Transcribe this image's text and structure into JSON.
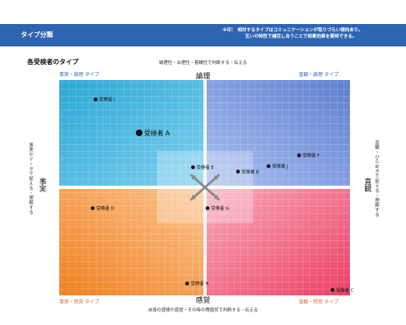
{
  "header": {
    "title": "タイプ分類",
    "note_line1": "※印： 相対するタイプはコミュニケーションが取りづらい傾向あり。",
    "note_line2": "互いの特性で補完し合うことで相乗効果を期待できる。"
  },
  "section_title": "各受検者のタイプ",
  "colors": {
    "banner": "#2f64b3",
    "top_left": "#2fa8d3",
    "top_right": "#5f82cf",
    "bottom_left": "#f08a2b",
    "bottom_right": "#ee5a77",
    "label_top": "#3a68b8",
    "label_bottom": "#e46b3a"
  },
  "chart_data": {
    "type": "scatter",
    "axes": {
      "top": "論理",
      "bottom": "感覚",
      "left": "事実",
      "right": "直観",
      "top_desc": "論理性・合理性・客観性で判断する・伝える",
      "bottom_desc": "自身の感情や感覚・その時の雰囲気で判断する・伝える",
      "left_desc": "事実やデータで捉える・理解する",
      "right_desc": "直観・ひらめきで捉える・理解する"
    },
    "quadrants": {
      "top_left": "事実・論理 タイプ",
      "top_right": "直観・論理 タイプ",
      "bottom_left": "事実・感覚 タイプ",
      "bottom_right": "直観・感覚 タイプ"
    },
    "xlim": [
      -10,
      10
    ],
    "ylim": [
      -10,
      10
    ],
    "points": [
      {
        "label": "受検者 I",
        "x": -7.5,
        "y": 8.2,
        "highlight": false
      },
      {
        "label": "受検者 A",
        "x": -4.5,
        "y": 5.1,
        "highlight": true
      },
      {
        "label": "受検者 F",
        "x": 6.5,
        "y": 3.0,
        "highlight": false
      },
      {
        "label": "受検者 J",
        "x": 4.4,
        "y": 2.0,
        "highlight": false
      },
      {
        "label": "受検者 E",
        "x": -0.8,
        "y": 1.9,
        "highlight": false
      },
      {
        "label": "受検者 B",
        "x": 2.3,
        "y": 1.5,
        "highlight": false
      },
      {
        "label": "受検者 D",
        "x": -7.7,
        "y": -1.9,
        "highlight": false
      },
      {
        "label": "受検者 G",
        "x": 0.2,
        "y": -1.9,
        "highlight": false
      },
      {
        "label": "受検者 H",
        "x": -1.2,
        "y": -8.9,
        "highlight": false
      },
      {
        "label": "受検者 C",
        "x": 8.8,
        "y": -9.5,
        "highlight": false
      }
    ]
  }
}
